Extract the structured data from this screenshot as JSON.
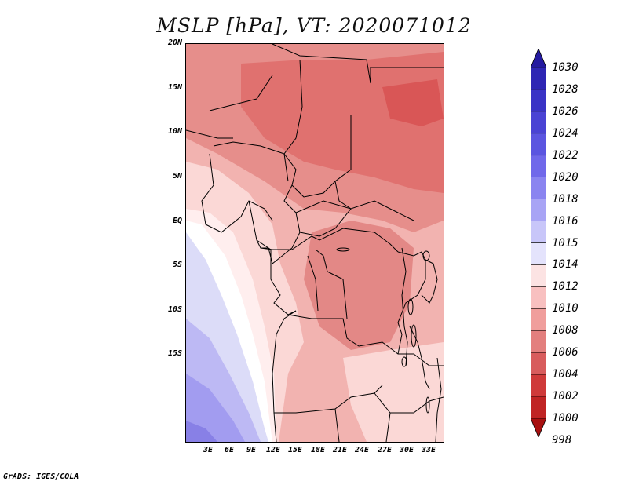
{
  "title": "MSLP [hPa], VT: 2020071012",
  "map": {
    "lat_labels": [
      "20N",
      "15N",
      "10N",
      "5N",
      "EQ",
      "5S",
      "10S",
      "15S"
    ],
    "lon_labels": [
      "3E",
      "6E",
      "9E",
      "12E",
      "15E",
      "18E",
      "21E",
      "24E",
      "27E",
      "30E",
      "33E"
    ]
  },
  "colorbar": {
    "levels": [
      "1030",
      "1028",
      "1026",
      "1024",
      "1022",
      "1020",
      "1018",
      "1016",
      "1015",
      "1014",
      "1012",
      "1010",
      "1008",
      "1006",
      "1004",
      "1002",
      "1000",
      "998"
    ],
    "colors": [
      "#241aa0",
      "#2e26b4",
      "#3a33c6",
      "#4a43d4",
      "#5b55e0",
      "#7068ea",
      "#8a84f0",
      "#a8a4f5",
      "#c8c6f9",
      "#e4e3fc",
      "#fce3e3",
      "#f8c0c0",
      "#f09e9c",
      "#e37f7e",
      "#d85c5d",
      "#cf3a3a",
      "#c02424",
      "#a81010"
    ]
  },
  "footer": "GrADS: IGES/COLA"
}
